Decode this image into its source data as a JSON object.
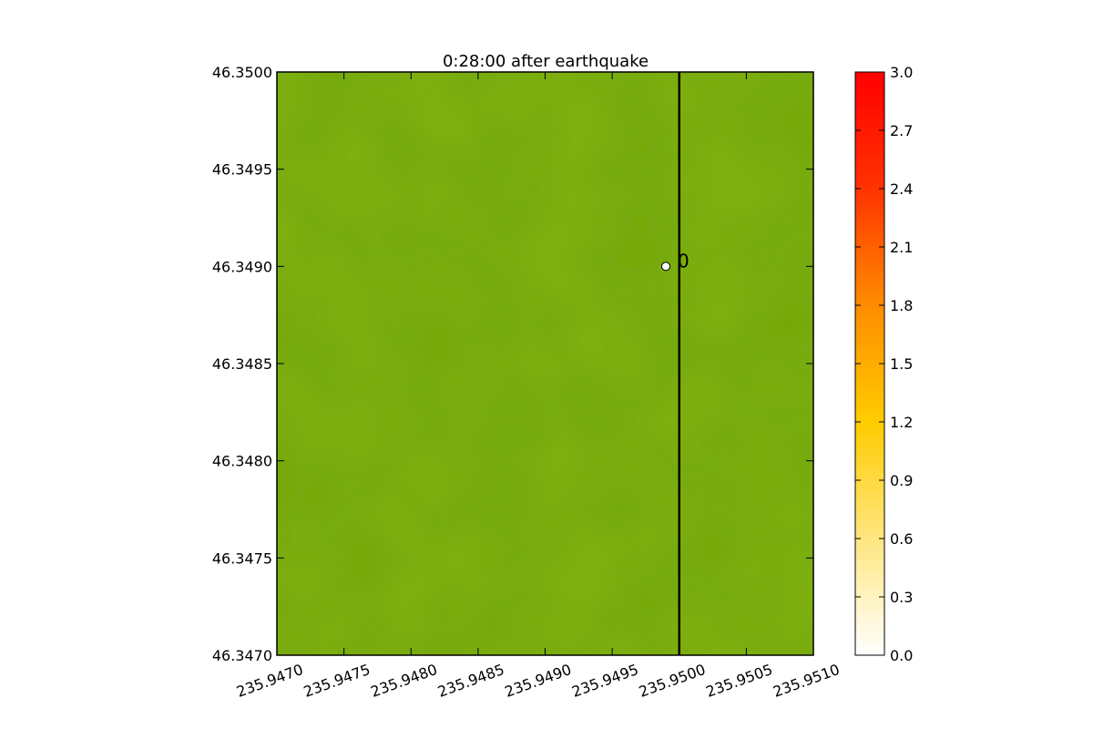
{
  "chart_data": {
    "type": "heatmap",
    "title": "0:28:00 after earthquake",
    "xlim": [
      235.947,
      235.951
    ],
    "ylim": [
      46.347,
      46.35
    ],
    "x_ticks": [
      {
        "value": 235.947,
        "label": "235.9470"
      },
      {
        "value": 235.9475,
        "label": "235.9475"
      },
      {
        "value": 235.948,
        "label": "235.9480"
      },
      {
        "value": 235.9485,
        "label": "235.9485"
      },
      {
        "value": 235.949,
        "label": "235.9490"
      },
      {
        "value": 235.9495,
        "label": "235.9495"
      },
      {
        "value": 235.95,
        "label": "235.9500"
      },
      {
        "value": 235.9505,
        "label": "235.9505"
      },
      {
        "value": 235.951,
        "label": "235.9510"
      }
    ],
    "y_ticks": [
      {
        "value": 46.347,
        "label": "46.3470"
      },
      {
        "value": 46.3475,
        "label": "46.3475"
      },
      {
        "value": 46.348,
        "label": "46.3480"
      },
      {
        "value": 46.3485,
        "label": "46.3485"
      },
      {
        "value": 46.349,
        "label": "46.3490"
      },
      {
        "value": 46.3495,
        "label": "46.3495"
      },
      {
        "value": 46.35,
        "label": "46.3500"
      }
    ],
    "background_color": "#72a70a",
    "vertical_line": {
      "x": 235.95
    },
    "gauge": {
      "x": 235.9499,
      "y": 46.349,
      "label": "0"
    },
    "colorbar": {
      "range": [
        0.0,
        3.0
      ],
      "colors": [
        "#ffffff",
        "#ffe680",
        "#ffcc00",
        "#ff8c00",
        "#ff3300",
        "#ff0000"
      ],
      "ticks": [
        {
          "value": 0.0,
          "label": "0.0"
        },
        {
          "value": 0.3,
          "label": "0.3"
        },
        {
          "value": 0.6,
          "label": "0.6"
        },
        {
          "value": 0.9,
          "label": "0.9"
        },
        {
          "value": 1.2,
          "label": "1.2"
        },
        {
          "value": 1.5,
          "label": "1.5"
        },
        {
          "value": 1.8,
          "label": "1.8"
        },
        {
          "value": 2.1,
          "label": "2.1"
        },
        {
          "value": 2.4,
          "label": "2.4"
        },
        {
          "value": 2.7,
          "label": "2.7"
        },
        {
          "value": 3.0,
          "label": "3.0"
        }
      ]
    }
  }
}
